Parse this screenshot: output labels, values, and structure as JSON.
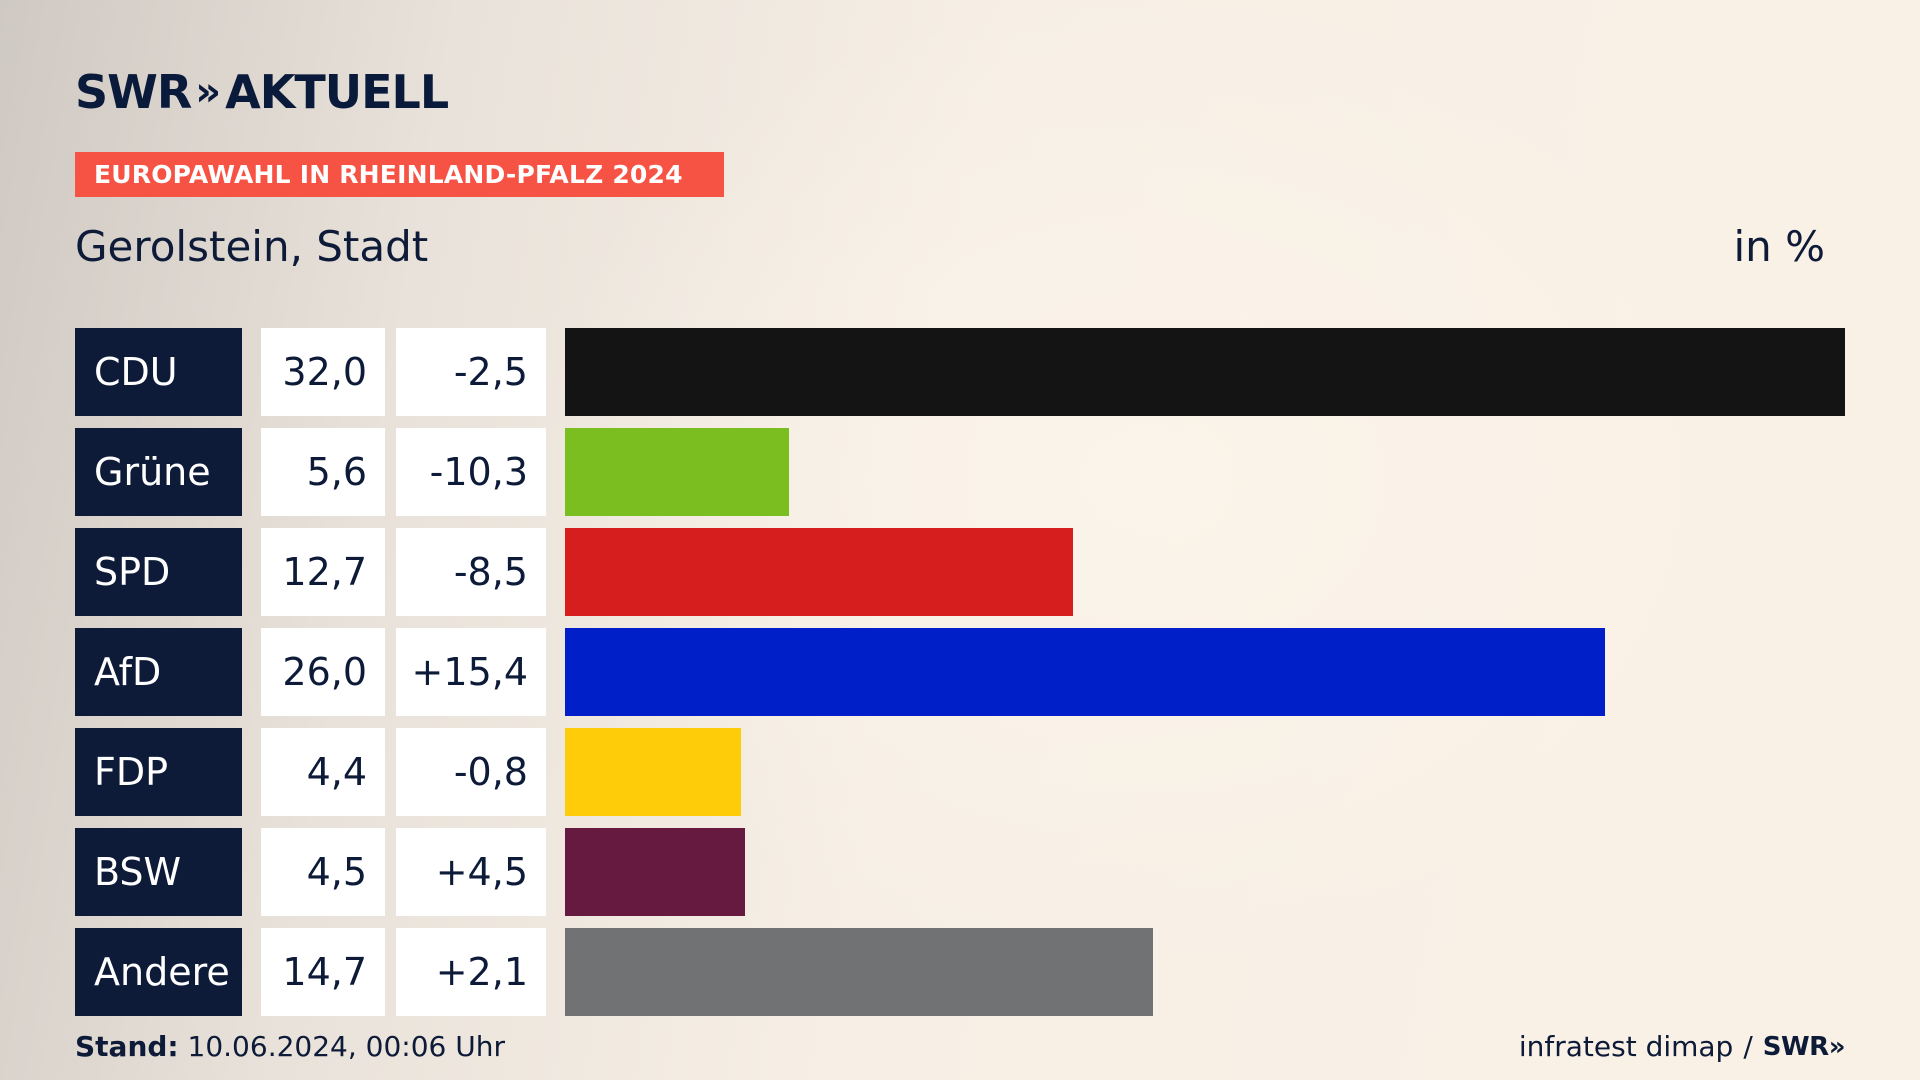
{
  "logo": {
    "text_left": "SWR",
    "chevrons": "»",
    "text_right": "AKTUELL"
  },
  "banner": "EUROPAWAHL IN RHEINLAND-PFALZ 2024",
  "subtitle": "Gerolstein, Stadt",
  "unit": "in %",
  "footer": {
    "stand_label": "Stand:",
    "stand_value": "10.06.2024, 00:06 Uhr",
    "source": "infratest dimap",
    "separator": "/",
    "source_logo": "SWR",
    "source_logo_chevrons": "»"
  },
  "chart_data": {
    "type": "bar",
    "orientation": "horizontal",
    "categories": [
      "CDU",
      "Grüne",
      "SPD",
      "AfD",
      "FDP",
      "BSW",
      "Andere"
    ],
    "values": [
      32.0,
      5.6,
      12.7,
      26.0,
      4.4,
      4.5,
      14.7
    ],
    "value_labels": [
      "32,0",
      "5,6",
      "12,7",
      "26,0",
      "4,4",
      "4,5",
      "14,7"
    ],
    "diffs": [
      -2.5,
      -10.3,
      -8.5,
      15.4,
      -0.8,
      4.5,
      2.1
    ],
    "diff_labels": [
      "-2,5",
      "-10,3",
      "-8,5",
      "+15,4",
      "-0,8",
      "+4,5",
      "+2,1"
    ],
    "colors": [
      "#141414",
      "#7abf1f",
      "#d61e1f",
      "#001fc9",
      "#ffcc0a",
      "#671a3f",
      "#717274"
    ],
    "xlim": [
      0,
      32.0
    ]
  }
}
